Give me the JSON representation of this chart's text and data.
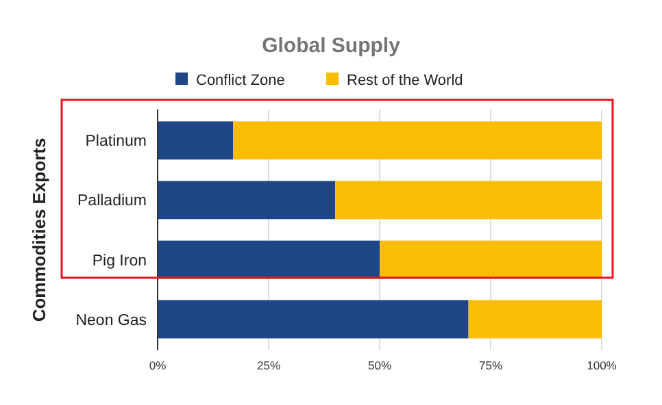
{
  "chart_data": {
    "type": "bar",
    "orientation": "horizontal",
    "stacked": true,
    "title": "Global Supply",
    "ylabel": "Commodities Exports",
    "categories": [
      "Platinum",
      "Palladium",
      "Pig Iron",
      "Neon Gas"
    ],
    "series": [
      {
        "name": "Conflict Zone",
        "color": "#1f4788",
        "values": [
          17,
          40,
          50,
          70
        ]
      },
      {
        "name": "Rest of the World",
        "color": "#fbbc05",
        "values": [
          83,
          60,
          50,
          30
        ]
      }
    ],
    "xlim": [
      0,
      100
    ],
    "xticks": [
      {
        "value": 0,
        "label": "0%"
      },
      {
        "value": 25,
        "label": "25%"
      },
      {
        "value": 50,
        "label": "50%"
      },
      {
        "value": 75,
        "label": "75%"
      },
      {
        "value": 100,
        "label": "100%"
      }
    ],
    "grid": "x",
    "legend": "top"
  }
}
